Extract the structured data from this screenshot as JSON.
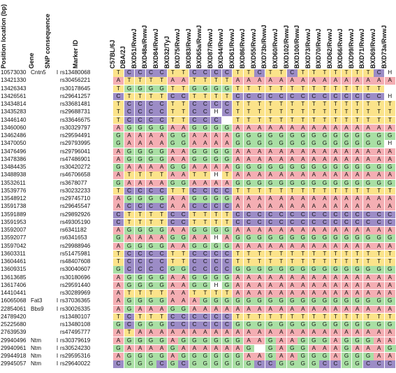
{
  "header": {
    "position": "Position location (bp)",
    "gene": "Gene",
    "snp": "SNP consequence",
    "marker": "Marker ID"
  },
  "strains": [
    "C57BL/6J",
    "DBA/2J",
    "BXD51/RwwJ",
    "BXD48a/RwwJ",
    "BXD84/RwwJ",
    "BXD32/TyJ",
    "BXD75/RwwJ",
    "BXD83/RwwJ",
    "BXD65a/RwwJ",
    "BXD87/RwwJ",
    "BXD44/RwwJ",
    "BXD61/RwwJ",
    "BXD86/RwwJ",
    "BXD55/RwwJ",
    "BXD73b/RwwJ",
    "BXD60/RwwJ",
    "BXD102/RwwJ",
    "BXD100/RwwJ",
    "BXD73/RwwJ",
    "BXD70/RwwJ",
    "BXD62/RwwJ",
    "BXD66/RwwJ",
    "BXD99/RwwJ",
    "BXD71/RwwJ",
    "BXD69/RwwJ",
    "BXD73a/RwwJ"
  ],
  "rows": [
    {
      "pos": "10573030",
      "gene": "Cntn5",
      "snp": "I",
      "marker": "rs13480068",
      "geno": "TCCCCTTCCCCTTCTTCTTTTTTTCH"
    },
    {
      "pos": "13421330",
      "gene": "",
      "snp": "",
      "marker": "rs30456221",
      "geno": "ATTTTAATTTTAAAAAAAAAAAAAAA"
    },
    {
      "pos": "13426343",
      "gene": "",
      "snp": "",
      "marker": "rs30178645",
      "geno": "TGGGGTTGGGGTTTTTTTTTTTTTT "
    },
    {
      "pos": "13426561",
      "gene": "",
      "snp": "",
      "marker": "rs29641257",
      "geno": "CTTTTCCTTTTCCCCCCCCCCCCCCH"
    },
    {
      "pos": "13434814",
      "gene": "",
      "snp": "",
      "marker": "rs33681481",
      "geno": "TCCCCTTCCCCTTTTTTTTTTTTTTT"
    },
    {
      "pos": "13435283",
      "gene": "",
      "snp": "",
      "marker": "rs29688731",
      "geno": "TCCCCTTCCHCTTTTTTTTTTTTTTT"
    },
    {
      "pos": "13446140",
      "gene": "",
      "snp": "",
      "marker": "rs33646675",
      "geno": "TCCCCTTCCC TTTTTTTTTTTTTTT"
    },
    {
      "pos": "13460060",
      "gene": "",
      "snp": "",
      "marker": "rs30329797",
      "geno": "AGGGGAAGGGGAAAAAAAAAAAAAAA"
    },
    {
      "pos": "13462486",
      "gene": "",
      "snp": "",
      "marker": "rs29594491",
      "geno": "GAAAAGGAAAAGGGGGGGGGGGGGGG"
    },
    {
      "pos": "13470050",
      "gene": "",
      "snp": "",
      "marker": "rs29793995",
      "geno": "GAAAAGGAAAAGGGGGGGGGGGGGGH"
    },
    {
      "pos": "13476496",
      "gene": "",
      "snp": "",
      "marker": "rs29796041",
      "geno": "AGGGGAAGGGGAAAAAAAAAAAAAAA"
    },
    {
      "pos": "13478386",
      "gene": "",
      "snp": "",
      "marker": "rs47486901",
      "geno": "AGGGGAAGGGGAAAAAAAAAAAAAAA"
    },
    {
      "pos": "13484435",
      "gene": "",
      "snp": "",
      "marker": "rs30420272",
      "geno": "GAAAAGGAAAAGGGGGGGGGGGGGGG"
    },
    {
      "pos": "13488938",
      "gene": "",
      "snp": "",
      "marker": "rs46706658",
      "geno": "ATTTTAATTHTAAAAAAAAAAAAAAA"
    },
    {
      "pos": "13532611",
      "gene": "",
      "snp": "",
      "marker": "rs3678077",
      "geno": "GAAAAGGAAAAGGGGGGGGGGGGGGG"
    },
    {
      "pos": "13539776",
      "gene": "",
      "snp": "",
      "marker": "rs30232233",
      "geno": "TCCCCTTCCCCTTTTTTTTTTTTTTT"
    },
    {
      "pos": "13548912",
      "gene": "",
      "snp": "",
      "marker": "rs29745710",
      "geno": "AGGGGAAGGGGAAAAAAAAAAAAAAA"
    },
    {
      "pos": "13591738",
      "gene": "",
      "snp": "",
      "marker": "rs29645547",
      "geno": "ACCCCAACCCCAAAAAAAAAAAAAAA"
    },
    {
      "pos": "13591889",
      "gene": "",
      "snp": "",
      "marker": "rs29892926",
      "geno": "CTTTTCCTTTTCCCCCCCCCCCCCCC"
    },
    {
      "pos": "13591953",
      "gene": "",
      "snp": "",
      "marker": "rs49305190",
      "geno": "CTTTTCCTTTTCCCCCCCCCCCCCCC"
    },
    {
      "pos": "13592007",
      "gene": "",
      "snp": "",
      "marker": "rs6341182",
      "geno": "AGGGGAAGGGGAAAAAAAAAAAAAAA"
    },
    {
      "pos": "13592077",
      "gene": "",
      "snp": "",
      "marker": "rs6341653",
      "geno": "GAAAAGGAAHAGGGGGGGGGGGGGGG"
    },
    {
      "pos": "13597042",
      "gene": "",
      "snp": "",
      "marker": "rs29988946",
      "geno": "AGGGGAAGGGGAAAAAAAAAAAAAAA"
    },
    {
      "pos": "13603311",
      "gene": "",
      "snp": "",
      "marker": "rs51475981",
      "geno": "TCCCCTTCCCCTTTTTTTTTTTTTTT"
    },
    {
      "pos": "13604461",
      "gene": "",
      "snp": "",
      "marker": "rs48407608",
      "geno": "TCCCCTTCCCCTTTTTTTTTTTTTTT"
    },
    {
      "pos": "13609315",
      "gene": "",
      "snp": "",
      "marker": "rs30040607",
      "geno": "GCCCCGGCCCCGGGGGGGGGGGGGGG"
    },
    {
      "pos": "13613685",
      "gene": "",
      "snp": "",
      "marker": "rs30180696",
      "geno": "AGGGGAAGGGGAAAAAAAAAAAAAAA"
    },
    {
      "pos": "13617406",
      "gene": "",
      "snp": "",
      "marker": "rs29591440",
      "geno": "AGGGGAAGGHGAAAAAAAAAAAAAAA"
    },
    {
      "pos": "14410441",
      "gene": "",
      "snp": "",
      "marker": "rs30289969",
      "geno": "ATTTTAATTTTAAAAAAAAAAAAAAA"
    },
    {
      "pos": "16065068",
      "gene": "Fat3",
      "snp": "I",
      "marker": "rs37036365",
      "geno": "AGGGGAAAGGGGGGGGGGGGGGGGGG"
    },
    {
      "pos": "22854061",
      "gene": "Bbs9",
      "snp": "I",
      "marker": "rs30026335",
      "geno": "AGAAAGGAAAAAAAAAAAAAAAAAAA"
    },
    {
      "pos": "24789420",
      "gene": "",
      "snp": "",
      "marker": "rs13480107",
      "geno": "TCTTTCCCCCCTTTTTTTTTTTTTTT"
    },
    {
      "pos": "25225680",
      "gene": "",
      "snp": "",
      "marker": "rs13480108",
      "geno": "GCGGGCCCCCCGGGGGGGGGGGGGGG"
    },
    {
      "pos": "27639539",
      "gene": "",
      "snp": "",
      "marker": "rs47495777",
      "geno": "ATAAAAAAAAAAAAAAAAAAAAAAAA"
    },
    {
      "pos": "29940496",
      "gene": "Ntm",
      "snp": "I",
      "marker": "rs30379619",
      "geno": "AGGGGAGGGGGGAAGAAGGGAGGGAA"
    },
    {
      "pos": "29940961",
      "gene": "Ntm",
      "snp": "I",
      "marker": "rs30524230",
      "geno": "GAAAAGAAAAAAG GAGGAAAGAAAGG"
    },
    {
      "pos": "29944918",
      "gene": "Ntm",
      "snp": "I",
      "marker": "rs29595316",
      "geno": "AGGGGAGGGGGGAAGAAGGGAGGGAA"
    },
    {
      "pos": "29945057",
      "gene": "Ntm",
      "snp": "I",
      "marker": "rs29640022",
      "geno": "CGGGCGCGGGGGGCCGGGGCCGGCCC"
    }
  ]
}
